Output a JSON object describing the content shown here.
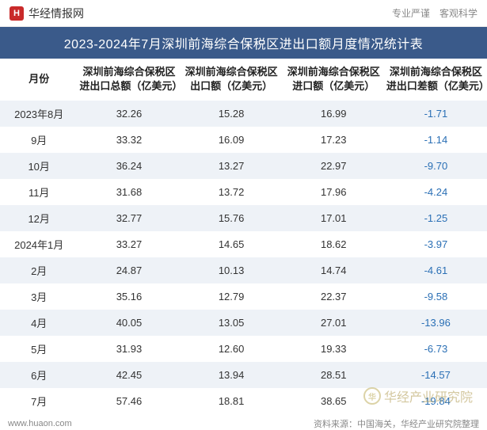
{
  "brand": {
    "logo_char": "H",
    "name": "华经情报网",
    "tagline": "专业严谨　客观科学"
  },
  "title": "2023-2024年7月深圳前海综合保税区进出口额月度情况统计表",
  "table": {
    "columns": [
      "月份",
      "深圳前海综合保税区进出口总额（亿美元）",
      "深圳前海综合保税区出口额（亿美元）",
      "深圳前海综合保税区进口额（亿美元）",
      "深圳前海综合保税区进出口差额（亿美元）"
    ],
    "col_widths": [
      "16%",
      "21%",
      "21%",
      "21%",
      "21%"
    ],
    "header_fontsize": 13,
    "body_fontsize": 13,
    "row_alt_bg": "#eef2f7",
    "row_bg": "#ffffff",
    "neg_color": "#2a6fb5",
    "text_color": "#333333",
    "rows": [
      {
        "month": "2023年8月",
        "total": "32.26",
        "export": "15.28",
        "import": "16.99",
        "diff": "-1.71"
      },
      {
        "month": "9月",
        "total": "33.32",
        "export": "16.09",
        "import": "17.23",
        "diff": "-1.14"
      },
      {
        "month": "10月",
        "total": "36.24",
        "export": "13.27",
        "import": "22.97",
        "diff": "-9.70"
      },
      {
        "month": "11月",
        "total": "31.68",
        "export": "13.72",
        "import": "17.96",
        "diff": "-4.24"
      },
      {
        "month": "12月",
        "total": "32.77",
        "export": "15.76",
        "import": "17.01",
        "diff": "-1.25"
      },
      {
        "month": "2024年1月",
        "total": "33.27",
        "export": "14.65",
        "import": "18.62",
        "diff": "-3.97"
      },
      {
        "month": "2月",
        "total": "24.87",
        "export": "10.13",
        "import": "14.74",
        "diff": "-4.61"
      },
      {
        "month": "3月",
        "total": "35.16",
        "export": "12.79",
        "import": "22.37",
        "diff": "-9.58"
      },
      {
        "month": "4月",
        "total": "40.05",
        "export": "13.05",
        "import": "27.01",
        "diff": "-13.96"
      },
      {
        "month": "5月",
        "total": "31.93",
        "export": "12.60",
        "import": "19.33",
        "diff": "-6.73"
      },
      {
        "month": "6月",
        "total": "42.45",
        "export": "13.94",
        "import": "28.51",
        "diff": "-14.57"
      },
      {
        "month": "7月",
        "total": "57.46",
        "export": "18.81",
        "import": "38.65",
        "diff": "-19.84"
      }
    ]
  },
  "footer": {
    "site": "www.huaon.com",
    "source": "资料来源：中国海关，华经产业研究院整理"
  },
  "watermark": {
    "logo_char": "华",
    "text": "华经产业研究院"
  },
  "colors": {
    "title_bg": "#3a5a8a",
    "title_fg": "#ffffff",
    "brand_logo_bg": "#c92a2a"
  }
}
